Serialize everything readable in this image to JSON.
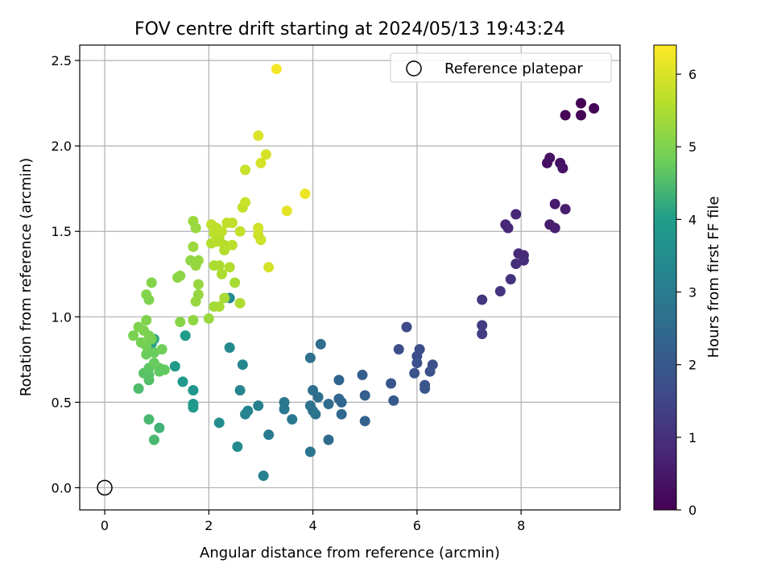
{
  "chart_data": {
    "type": "scatter",
    "title": "FOV centre drift starting at 2024/05/13 19:43:24",
    "xlabel": "Angular distance from reference (arcmin)",
    "ylabel": "Rotation from reference (arcmin)",
    "xlim": [
      -0.48,
      9.9
    ],
    "ylim": [
      -0.13,
      2.59
    ],
    "xticks": [
      0,
      2,
      4,
      6,
      8
    ],
    "yticks": [
      0.0,
      0.5,
      1.0,
      1.5,
      2.0,
      2.5
    ],
    "xtick_labels": [
      "0",
      "2",
      "4",
      "6",
      "8"
    ],
    "ytick_labels": [
      "0.0",
      "0.5",
      "1.0",
      "1.5",
      "2.0",
      "2.5"
    ],
    "grid": true,
    "legend": {
      "placement": "top-right",
      "entries": [
        "Reference platepar"
      ]
    },
    "reference_point": {
      "x": 0,
      "y": 0
    },
    "colorbar": {
      "label": "Hours from first FF file",
      "range": [
        0,
        6.4
      ],
      "ticks": [
        0,
        1,
        2,
        3,
        4,
        5,
        6
      ],
      "tick_labels": [
        "0",
        "1",
        "2",
        "3",
        "4",
        "5",
        "6"
      ],
      "colormap": [
        "#440154",
        "#482777",
        "#3f4a8a",
        "#31678e",
        "#26838f",
        "#1f9d8a",
        "#6cce5a",
        "#b6de2b",
        "#fee825"
      ]
    },
    "series": [
      {
        "points": [
          {
            "x": 9.15,
            "y": 2.25,
            "h": 0.02
          },
          {
            "x": 9.4,
            "y": 2.22,
            "h": 0.05
          },
          {
            "x": 9.15,
            "y": 2.18,
            "h": 0.08
          },
          {
            "x": 8.85,
            "y": 2.18,
            "h": 0.1
          },
          {
            "x": 8.5,
            "y": 1.9,
            "h": 0.3
          },
          {
            "x": 8.55,
            "y": 1.93,
            "h": 0.35
          },
          {
            "x": 8.75,
            "y": 1.9,
            "h": 0.35
          },
          {
            "x": 8.8,
            "y": 1.87,
            "h": 0.4
          },
          {
            "x": 8.65,
            "y": 1.66,
            "h": 0.55
          },
          {
            "x": 8.85,
            "y": 1.63,
            "h": 0.58
          },
          {
            "x": 8.55,
            "y": 1.54,
            "h": 0.6
          },
          {
            "x": 8.65,
            "y": 1.52,
            "h": 0.65
          },
          {
            "x": 7.9,
            "y": 1.6,
            "h": 0.8
          },
          {
            "x": 7.7,
            "y": 1.54,
            "h": 0.85
          },
          {
            "x": 7.75,
            "y": 1.52,
            "h": 0.85
          },
          {
            "x": 7.95,
            "y": 1.37,
            "h": 0.9
          },
          {
            "x": 8.05,
            "y": 1.36,
            "h": 0.9
          },
          {
            "x": 8.05,
            "y": 1.33,
            "h": 0.95
          },
          {
            "x": 7.9,
            "y": 1.31,
            "h": 0.95
          },
          {
            "x": 7.8,
            "y": 1.22,
            "h": 1.05
          },
          {
            "x": 7.6,
            "y": 1.15,
            "h": 1.1
          },
          {
            "x": 7.25,
            "y": 1.1,
            "h": 1.2
          },
          {
            "x": 7.25,
            "y": 0.95,
            "h": 1.3
          },
          {
            "x": 7.25,
            "y": 0.9,
            "h": 1.3
          },
          {
            "x": 5.8,
            "y": 0.94,
            "h": 1.6
          },
          {
            "x": 6.05,
            "y": 0.81,
            "h": 1.7
          },
          {
            "x": 5.65,
            "y": 0.81,
            "h": 1.7
          },
          {
            "x": 6.0,
            "y": 0.77,
            "h": 1.75
          },
          {
            "x": 6.0,
            "y": 0.73,
            "h": 1.8
          },
          {
            "x": 6.3,
            "y": 0.72,
            "h": 1.8
          },
          {
            "x": 6.25,
            "y": 0.68,
            "h": 1.85
          },
          {
            "x": 5.95,
            "y": 0.67,
            "h": 1.85
          },
          {
            "x": 5.5,
            "y": 0.61,
            "h": 1.9
          },
          {
            "x": 6.15,
            "y": 0.6,
            "h": 1.95
          },
          {
            "x": 6.15,
            "y": 0.58,
            "h": 1.95
          },
          {
            "x": 5.55,
            "y": 0.51,
            "h": 2.0
          },
          {
            "x": 4.95,
            "y": 0.66,
            "h": 2.15
          },
          {
            "x": 5.0,
            "y": 0.54,
            "h": 2.2
          },
          {
            "x": 5.0,
            "y": 0.39,
            "h": 2.25
          },
          {
            "x": 4.5,
            "y": 0.63,
            "h": 2.35
          },
          {
            "x": 4.5,
            "y": 0.52,
            "h": 2.4
          },
          {
            "x": 4.55,
            "y": 0.5,
            "h": 2.4
          },
          {
            "x": 4.55,
            "y": 0.43,
            "h": 2.45
          },
          {
            "x": 4.3,
            "y": 0.49,
            "h": 2.5
          },
          {
            "x": 4.3,
            "y": 0.28,
            "h": 2.55
          },
          {
            "x": 4.1,
            "y": 0.53,
            "h": 2.6
          },
          {
            "x": 4.15,
            "y": 0.84,
            "h": 2.55
          },
          {
            "x": 3.95,
            "y": 0.76,
            "h": 2.65
          },
          {
            "x": 4.0,
            "y": 0.57,
            "h": 2.65
          },
          {
            "x": 3.95,
            "y": 0.48,
            "h": 2.7
          },
          {
            "x": 4.0,
            "y": 0.45,
            "h": 2.7
          },
          {
            "x": 4.05,
            "y": 0.43,
            "h": 2.75
          },
          {
            "x": 3.95,
            "y": 0.21,
            "h": 2.8
          },
          {
            "x": 3.45,
            "y": 0.5,
            "h": 2.85
          },
          {
            "x": 3.45,
            "y": 0.46,
            "h": 2.9
          },
          {
            "x": 3.6,
            "y": 0.4,
            "h": 2.9
          },
          {
            "x": 3.15,
            "y": 0.31,
            "h": 3.0
          },
          {
            "x": 3.05,
            "y": 0.07,
            "h": 3.1
          },
          {
            "x": 2.95,
            "y": 0.48,
            "h": 3.1
          },
          {
            "x": 2.75,
            "y": 0.45,
            "h": 3.2
          },
          {
            "x": 2.7,
            "y": 0.43,
            "h": 3.2
          },
          {
            "x": 2.6,
            "y": 0.57,
            "h": 3.25
          },
          {
            "x": 2.65,
            "y": 0.72,
            "h": 3.3
          },
          {
            "x": 2.4,
            "y": 0.82,
            "h": 3.4
          },
          {
            "x": 2.4,
            "y": 1.11,
            "h": 3.45
          },
          {
            "x": 2.2,
            "y": 0.38,
            "h": 3.5
          },
          {
            "x": 2.55,
            "y": 0.24,
            "h": 3.45
          },
          {
            "x": 1.7,
            "y": 0.57,
            "h": 3.8
          },
          {
            "x": 1.7,
            "y": 0.49,
            "h": 3.85
          },
          {
            "x": 1.7,
            "y": 0.47,
            "h": 3.85
          },
          {
            "x": 1.55,
            "y": 0.89,
            "h": 3.9
          },
          {
            "x": 1.5,
            "y": 0.62,
            "h": 3.9
          },
          {
            "x": 1.35,
            "y": 0.71,
            "h": 3.95
          },
          {
            "x": 0.9,
            "y": 0.84,
            "h": 4.1
          },
          {
            "x": 0.95,
            "y": 0.87,
            "h": 4.15
          },
          {
            "x": 1.05,
            "y": 0.35,
            "h": 4.35
          },
          {
            "x": 0.95,
            "y": 0.28,
            "h": 4.45
          },
          {
            "x": 0.85,
            "y": 0.4,
            "h": 4.45
          },
          {
            "x": 0.65,
            "y": 0.58,
            "h": 4.5
          },
          {
            "x": 0.85,
            "y": 0.63,
            "h": 4.55
          },
          {
            "x": 0.85,
            "y": 0.66,
            "h": 4.6
          },
          {
            "x": 0.75,
            "y": 0.67,
            "h": 4.6
          },
          {
            "x": 0.85,
            "y": 0.7,
            "h": 4.65
          },
          {
            "x": 1.15,
            "y": 0.69,
            "h": 4.7
          },
          {
            "x": 1.05,
            "y": 0.68,
            "h": 4.7
          },
          {
            "x": 1.05,
            "y": 0.7,
            "h": 4.7
          },
          {
            "x": 0.95,
            "y": 0.73,
            "h": 4.75
          },
          {
            "x": 0.95,
            "y": 0.79,
            "h": 4.75
          },
          {
            "x": 0.8,
            "y": 0.78,
            "h": 4.8
          },
          {
            "x": 1.1,
            "y": 0.81,
            "h": 4.85
          },
          {
            "x": 0.8,
            "y": 0.83,
            "h": 4.85
          },
          {
            "x": 0.7,
            "y": 0.85,
            "h": 4.9
          },
          {
            "x": 0.9,
            "y": 0.87,
            "h": 4.9
          },
          {
            "x": 0.85,
            "y": 0.89,
            "h": 4.95
          },
          {
            "x": 0.55,
            "y": 0.89,
            "h": 4.95
          },
          {
            "x": 0.75,
            "y": 0.92,
            "h": 4.95
          },
          {
            "x": 0.65,
            "y": 0.94,
            "h": 5.0
          },
          {
            "x": 0.8,
            "y": 0.98,
            "h": 5.0
          },
          {
            "x": 0.85,
            "y": 1.1,
            "h": 5.0
          },
          {
            "x": 0.8,
            "y": 1.13,
            "h": 5.05
          },
          {
            "x": 0.9,
            "y": 1.2,
            "h": 5.05
          },
          {
            "x": 1.45,
            "y": 0.97,
            "h": 5.1
          },
          {
            "x": 1.4,
            "y": 1.23,
            "h": 5.15
          },
          {
            "x": 1.45,
            "y": 1.24,
            "h": 5.15
          },
          {
            "x": 1.7,
            "y": 0.98,
            "h": 5.2
          },
          {
            "x": 2.0,
            "y": 0.99,
            "h": 5.3
          },
          {
            "x": 1.75,
            "y": 1.09,
            "h": 5.25
          },
          {
            "x": 1.8,
            "y": 1.13,
            "h": 5.25
          },
          {
            "x": 1.8,
            "y": 1.19,
            "h": 5.25
          },
          {
            "x": 1.75,
            "y": 1.3,
            "h": 5.25
          },
          {
            "x": 1.65,
            "y": 1.33,
            "h": 5.2
          },
          {
            "x": 1.8,
            "y": 1.33,
            "h": 5.25
          },
          {
            "x": 1.7,
            "y": 1.41,
            "h": 5.3
          },
          {
            "x": 1.75,
            "y": 1.52,
            "h": 5.3
          },
          {
            "x": 1.7,
            "y": 1.56,
            "h": 5.3
          },
          {
            "x": 2.1,
            "y": 1.06,
            "h": 5.4
          },
          {
            "x": 2.2,
            "y": 1.06,
            "h": 5.45
          },
          {
            "x": 2.3,
            "y": 1.11,
            "h": 5.45
          },
          {
            "x": 2.5,
            "y": 1.2,
            "h": 5.45
          },
          {
            "x": 2.6,
            "y": 1.08,
            "h": 5.5
          },
          {
            "x": 2.1,
            "y": 1.3,
            "h": 5.5
          },
          {
            "x": 2.2,
            "y": 1.3,
            "h": 5.5
          },
          {
            "x": 2.25,
            "y": 1.25,
            "h": 5.5
          },
          {
            "x": 2.4,
            "y": 1.29,
            "h": 5.55
          },
          {
            "x": 2.3,
            "y": 1.39,
            "h": 5.55
          },
          {
            "x": 2.05,
            "y": 1.43,
            "h": 5.55
          },
          {
            "x": 2.15,
            "y": 1.44,
            "h": 5.6
          },
          {
            "x": 2.2,
            "y": 1.46,
            "h": 5.6
          },
          {
            "x": 2.3,
            "y": 1.42,
            "h": 5.6
          },
          {
            "x": 2.45,
            "y": 1.42,
            "h": 5.65
          },
          {
            "x": 2.1,
            "y": 1.49,
            "h": 5.65
          },
          {
            "x": 2.15,
            "y": 1.52,
            "h": 5.65
          },
          {
            "x": 2.25,
            "y": 1.5,
            "h": 5.7
          },
          {
            "x": 2.35,
            "y": 1.55,
            "h": 5.7
          },
          {
            "x": 2.45,
            "y": 1.55,
            "h": 5.7
          },
          {
            "x": 2.05,
            "y": 1.54,
            "h": 5.7
          },
          {
            "x": 2.6,
            "y": 1.5,
            "h": 5.75
          },
          {
            "x": 2.65,
            "y": 1.64,
            "h": 5.75
          },
          {
            "x": 2.7,
            "y": 1.67,
            "h": 5.8
          },
          {
            "x": 2.7,
            "y": 1.86,
            "h": 5.8
          },
          {
            "x": 2.95,
            "y": 1.48,
            "h": 5.85
          },
          {
            "x": 3.0,
            "y": 1.45,
            "h": 5.85
          },
          {
            "x": 2.95,
            "y": 1.52,
            "h": 5.9
          },
          {
            "x": 3.15,
            "y": 1.29,
            "h": 5.9
          },
          {
            "x": 3.0,
            "y": 1.9,
            "h": 5.95
          },
          {
            "x": 3.1,
            "y": 1.95,
            "h": 5.95
          },
          {
            "x": 2.95,
            "y": 2.06,
            "h": 6.0
          },
          {
            "x": 3.5,
            "y": 1.62,
            "h": 6.1
          },
          {
            "x": 3.85,
            "y": 1.72,
            "h": 6.2
          },
          {
            "x": 3.3,
            "y": 2.45,
            "h": 6.3
          }
        ]
      }
    ]
  }
}
